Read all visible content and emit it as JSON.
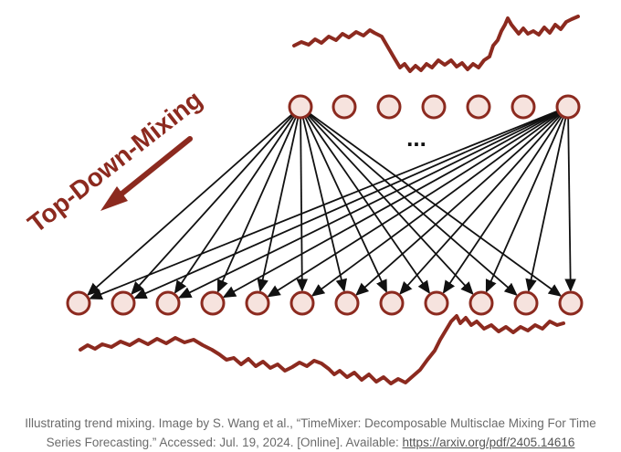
{
  "figure": {
    "label": "Top-Down-Mixing",
    "ellipsis": "...",
    "colors": {
      "accent": "#8c2a1f",
      "node_fill": "#f6e3de",
      "node_stroke": "#8c2a1f",
      "edge": "#111111"
    },
    "top_nodes": 7,
    "bottom_nodes": 12
  },
  "caption": {
    "text": "Illustrating trend mixing. Image by S. Wang et al., “TimeMixer: Decomposable Multisclae Mixing For Time Series Forecasting.” Accessed: Jul. 19, 2024. [Online]. Available: ",
    "link_text": "https://arxiv.org/pdf/2405.14616"
  }
}
